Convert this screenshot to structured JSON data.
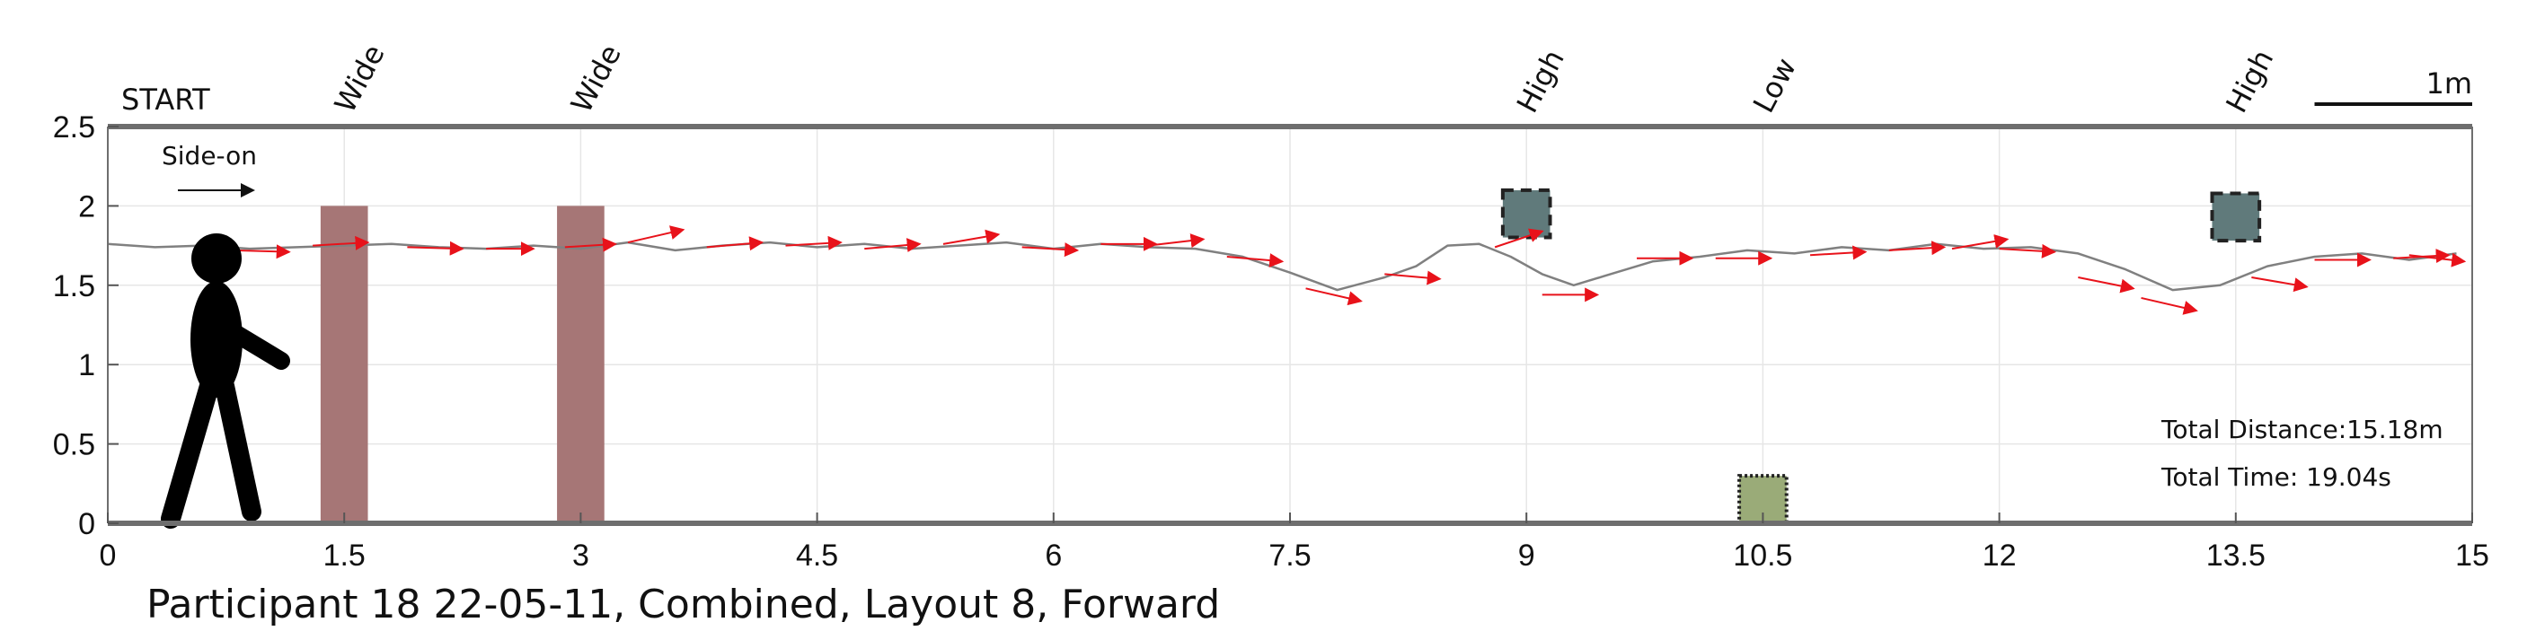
{
  "chart_data": {
    "type": "line",
    "title": "Participant 18 22-05-11, Combined, Layout 8, Forward",
    "xlabel": "",
    "ylabel": "",
    "xlim": [
      0,
      15
    ],
    "ylim": [
      0,
      2.5
    ],
    "x_ticks": [
      "0",
      "1.5",
      "3",
      "4.5",
      "6",
      "7.5",
      "9",
      "10.5",
      "12",
      "13.5",
      "15"
    ],
    "y_ticks": [
      "0",
      "0.5",
      "1",
      "1.5",
      "2",
      "2.5"
    ],
    "grid": true,
    "start_label": "START",
    "scale_bar_label": "1m",
    "scale_bar_length": 1,
    "direction_label": "Side-on",
    "total_distance": "Total Distance:15.18m",
    "total_time": "Total Time: 19.04s",
    "obstacles": [
      {
        "label": "Wide",
        "type": "wide",
        "x": 1.5,
        "y": 0,
        "width": 0.3,
        "height": 2.0,
        "color": "#a67676"
      },
      {
        "label": "Wide",
        "type": "wide",
        "x": 3.0,
        "y": 0,
        "width": 0.3,
        "height": 2.0,
        "color": "#a67676"
      },
      {
        "label": "High",
        "type": "high",
        "x": 9.0,
        "y": 1.95,
        "size": 0.3,
        "color": "#607a7b"
      },
      {
        "label": "Low",
        "type": "low",
        "x": 10.5,
        "y": 0.15,
        "size": 0.3,
        "color": "#9aab78"
      },
      {
        "label": "High",
        "type": "high",
        "x": 13.5,
        "y": 1.93,
        "size": 0.3,
        "color": "#607a7b"
      }
    ],
    "series": [
      {
        "kind": "trajectory",
        "color": "#808080",
        "x": [
          0,
          0.3,
          0.6,
          0.9,
          1.2,
          1.5,
          1.8,
          2.1,
          2.4,
          2.7,
          3.0,
          3.3,
          3.6,
          3.9,
          4.2,
          4.5,
          4.8,
          5.1,
          5.4,
          5.7,
          6.0,
          6.3,
          6.6,
          6.9,
          7.2,
          7.5,
          7.8,
          8.1,
          8.3,
          8.5,
          8.7,
          8.9,
          9.1,
          9.3,
          9.5,
          9.8,
          10.1,
          10.4,
          10.7,
          11.0,
          11.3,
          11.6,
          11.9,
          12.2,
          12.5,
          12.8,
          13.1,
          13.4,
          13.7,
          14.0,
          14.3,
          14.6,
          14.9
        ],
        "y": [
          1.76,
          1.74,
          1.75,
          1.73,
          1.74,
          1.75,
          1.76,
          1.74,
          1.73,
          1.75,
          1.73,
          1.77,
          1.72,
          1.75,
          1.77,
          1.74,
          1.76,
          1.73,
          1.75,
          1.77,
          1.73,
          1.76,
          1.74,
          1.73,
          1.68,
          1.58,
          1.47,
          1.55,
          1.62,
          1.75,
          1.76,
          1.68,
          1.57,
          1.5,
          1.56,
          1.65,
          1.68,
          1.72,
          1.7,
          1.74,
          1.72,
          1.76,
          1.73,
          1.74,
          1.7,
          1.6,
          1.47,
          1.5,
          1.62,
          1.68,
          1.7,
          1.66,
          1.7
        ]
      },
      {
        "kind": "heading-arrows",
        "color": "#e8121a",
        "points": [
          {
            "x": 0.8,
            "y": 1.72,
            "dx": 0.35,
            "dy": -0.01
          },
          {
            "x": 1.3,
            "y": 1.75,
            "dx": 0.35,
            "dy": 0.02
          },
          {
            "x": 1.9,
            "y": 1.74,
            "dx": 0.35,
            "dy": -0.01
          },
          {
            "x": 2.4,
            "y": 1.73,
            "dx": 0.3,
            "dy": 0.0
          },
          {
            "x": 2.9,
            "y": 1.74,
            "dx": 0.32,
            "dy": 0.02
          },
          {
            "x": 3.3,
            "y": 1.77,
            "dx": 0.35,
            "dy": 0.08
          },
          {
            "x": 3.8,
            "y": 1.74,
            "dx": 0.35,
            "dy": 0.03
          },
          {
            "x": 4.3,
            "y": 1.75,
            "dx": 0.35,
            "dy": 0.02
          },
          {
            "x": 4.8,
            "y": 1.73,
            "dx": 0.35,
            "dy": 0.03
          },
          {
            "x": 5.3,
            "y": 1.76,
            "dx": 0.35,
            "dy": 0.06
          },
          {
            "x": 5.8,
            "y": 1.74,
            "dx": 0.35,
            "dy": -0.02
          },
          {
            "x": 6.3,
            "y": 1.76,
            "dx": 0.35,
            "dy": 0.0
          },
          {
            "x": 6.6,
            "y": 1.75,
            "dx": 0.35,
            "dy": 0.04
          },
          {
            "x": 7.1,
            "y": 1.68,
            "dx": 0.35,
            "dy": -0.03
          },
          {
            "x": 7.6,
            "y": 1.48,
            "dx": 0.35,
            "dy": -0.08
          },
          {
            "x": 8.1,
            "y": 1.57,
            "dx": 0.35,
            "dy": -0.03
          },
          {
            "x": 8.8,
            "y": 1.74,
            "dx": 0.3,
            "dy": 0.1
          },
          {
            "x": 9.1,
            "y": 1.44,
            "dx": 0.35,
            "dy": 0.0
          },
          {
            "x": 9.7,
            "y": 1.67,
            "dx": 0.35,
            "dy": 0.0
          },
          {
            "x": 10.2,
            "y": 1.67,
            "dx": 0.35,
            "dy": 0.0
          },
          {
            "x": 10.8,
            "y": 1.69,
            "dx": 0.35,
            "dy": 0.02
          },
          {
            "x": 11.3,
            "y": 1.72,
            "dx": 0.35,
            "dy": 0.02
          },
          {
            "x": 11.7,
            "y": 1.73,
            "dx": 0.35,
            "dy": 0.06
          },
          {
            "x": 12.0,
            "y": 1.73,
            "dx": 0.35,
            "dy": -0.02
          },
          {
            "x": 12.5,
            "y": 1.55,
            "dx": 0.35,
            "dy": -0.07
          },
          {
            "x": 12.9,
            "y": 1.42,
            "dx": 0.35,
            "dy": -0.08
          },
          {
            "x": 13.6,
            "y": 1.55,
            "dx": 0.35,
            "dy": -0.06
          },
          {
            "x": 14.0,
            "y": 1.66,
            "dx": 0.35,
            "dy": 0.0
          },
          {
            "x": 14.5,
            "y": 1.67,
            "dx": 0.35,
            "dy": 0.02
          },
          {
            "x": 14.6,
            "y": 1.69,
            "dx": 0.35,
            "dy": -0.04
          }
        ]
      }
    ]
  }
}
